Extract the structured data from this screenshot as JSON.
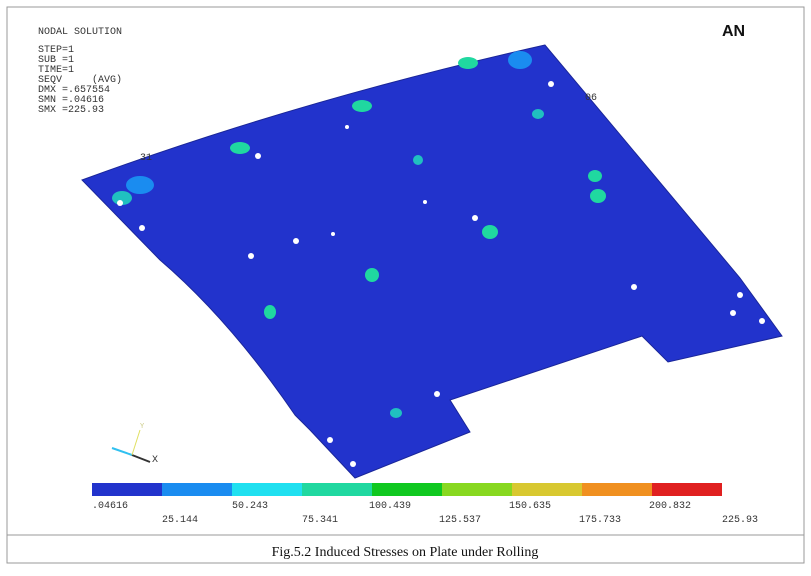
{
  "header": {
    "title": "NODAL SOLUTION",
    "lines": [
      "STEP=1",
      "SUB =1",
      "TIME=1",
      "SEQV     (AVG)",
      "DMX =.657554",
      "SMN =.04616",
      "SMX =225.93"
    ]
  },
  "logo": "AN",
  "plot_labels": [
    "06",
    "31"
  ],
  "triad": {
    "x": "X",
    "y": "Y"
  },
  "legend": {
    "labels": [
      ".04616",
      "25.144",
      "50.243",
      "75.341",
      "100.439",
      "125.537",
      "150.635",
      "175.733",
      "200.832",
      "225.93"
    ],
    "colors": [
      "#2233cc",
      "#1a8cf0",
      "#20e0f0",
      "#20d8a0",
      "#10c820",
      "#88d820",
      "#d8c830",
      "#f09020",
      "#e02020"
    ]
  },
  "caption": "Fig.5.2 Induced Stresses on Plate under Rolling"
}
